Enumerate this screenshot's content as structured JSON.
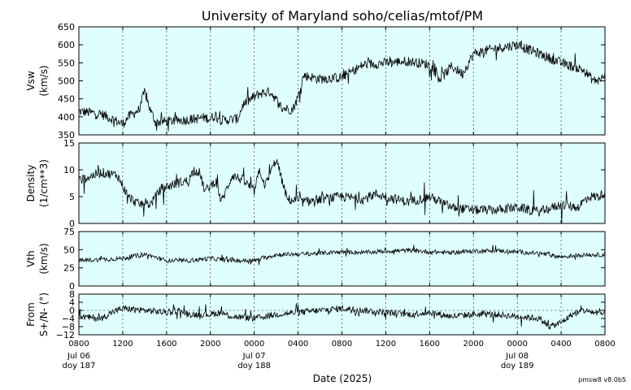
{
  "chart_data": {
    "type": "line",
    "title": "University of Maryland  soho/celias/mtof/PM",
    "xlabel": "Date (2025)",
    "footer": "pmsw8 v8.0b5",
    "x_axis": {
      "range_hours": [
        0,
        48
      ],
      "tick_labels": [
        "0800",
        "1200",
        "1600",
        "2000",
        "0000",
        "0400",
        "0800",
        "1200",
        "1600",
        "2000",
        "0000",
        "0400",
        "0800"
      ],
      "day_labels": [
        {
          "date": "Jul 06",
          "doy": "doy 187",
          "at_tick": 0
        },
        {
          "date": "Jul 07",
          "doy": "doy 188",
          "at_tick": 4
        },
        {
          "date": "Jul 08",
          "doy": "doy 189",
          "at_tick": 10
        }
      ]
    },
    "panels": [
      {
        "name": "Vsw",
        "ylabel_1": "Vsw",
        "ylabel_2": "(km/s)",
        "ylim": [
          350,
          650
        ],
        "yticks": [
          "350",
          "400",
          "450",
          "500",
          "550",
          "600",
          "650"
        ],
        "yticks_num": [
          350,
          400,
          450,
          500,
          550,
          600,
          650
        ],
        "zero_line": false,
        "anchors": [
          [
            0,
            415
          ],
          [
            1,
            412
          ],
          [
            2,
            408
          ],
          [
            3,
            395
          ],
          [
            4,
            380
          ],
          [
            4.5,
            400
          ],
          [
            5.5,
            420
          ],
          [
            6,
            470
          ],
          [
            6.5,
            420
          ],
          [
            7,
            385
          ],
          [
            9,
            390
          ],
          [
            10,
            392
          ],
          [
            11.5,
            398
          ],
          [
            12,
            395
          ],
          [
            12.5,
            405
          ],
          [
            13,
            390
          ],
          [
            14.5,
            395
          ],
          [
            15,
            435
          ],
          [
            16.5,
            465
          ],
          [
            17.5,
            470
          ],
          [
            18.5,
            425
          ],
          [
            19.5,
            420
          ],
          [
            20,
            455
          ],
          [
            20.5,
            515
          ],
          [
            22,
            505
          ],
          [
            24,
            510
          ],
          [
            26,
            545
          ],
          [
            28,
            550
          ],
          [
            30,
            555
          ],
          [
            32,
            545
          ],
          [
            33,
            505
          ],
          [
            34,
            540
          ],
          [
            35,
            520
          ],
          [
            36,
            575
          ],
          [
            38,
            590
          ],
          [
            40,
            600
          ],
          [
            42,
            575
          ],
          [
            44,
            550
          ],
          [
            46,
            530
          ],
          [
            47,
            500
          ],
          [
            48,
            510
          ]
        ],
        "noise": 14,
        "spikes": 30
      },
      {
        "name": "Density",
        "ylabel_1": "Density",
        "ylabel_2": "(1/cm**3)",
        "ylim": [
          0,
          15
        ],
        "yticks": [
          "0",
          "5",
          "10",
          "15"
        ],
        "yticks_num": [
          0,
          5,
          10,
          15
        ],
        "zero_line": false,
        "anchors": [
          [
            0,
            8
          ],
          [
            2,
            9.5
          ],
          [
            3.5,
            9
          ],
          [
            4.5,
            5
          ],
          [
            5.5,
            3.5
          ],
          [
            6,
            4
          ],
          [
            6.5,
            3.5
          ],
          [
            7.5,
            6.5
          ],
          [
            9,
            7.5
          ],
          [
            10,
            8
          ],
          [
            10.5,
            10
          ],
          [
            11,
            9.5
          ],
          [
            11.5,
            6
          ],
          [
            12.5,
            8
          ],
          [
            13,
            4
          ],
          [
            14,
            9
          ],
          [
            15,
            8
          ],
          [
            16,
            6
          ],
          [
            16.5,
            10
          ],
          [
            17,
            7
          ],
          [
            18,
            12
          ],
          [
            19,
            4.5
          ],
          [
            20.5,
            4
          ],
          [
            22,
            4.5
          ],
          [
            24,
            5
          ],
          [
            26,
            4.5
          ],
          [
            27,
            5.5
          ],
          [
            28,
            5
          ],
          [
            30,
            4
          ],
          [
            32,
            5
          ],
          [
            34,
            3
          ],
          [
            36,
            2.5
          ],
          [
            38,
            2.5
          ],
          [
            40,
            3
          ],
          [
            42,
            2.2
          ],
          [
            44,
            3.5
          ],
          [
            45.5,
            3
          ],
          [
            46.5,
            5
          ],
          [
            47.5,
            5
          ],
          [
            48,
            6
          ]
        ],
        "noise": 0.9,
        "spikes": 3
      },
      {
        "name": "Vth",
        "ylabel_1": "Vth",
        "ylabel_2": "(km/s)",
        "ylim": [
          0,
          75
        ],
        "yticks": [
          "0",
          "25",
          "50",
          "75"
        ],
        "yticks_num": [
          0,
          25,
          50,
          75
        ],
        "zero_line": false,
        "anchors": [
          [
            0,
            35
          ],
          [
            4,
            38
          ],
          [
            6,
            44
          ],
          [
            8,
            35
          ],
          [
            10,
            35
          ],
          [
            12,
            38
          ],
          [
            14,
            35
          ],
          [
            16,
            35
          ],
          [
            18,
            43
          ],
          [
            20,
            44
          ],
          [
            22,
            45
          ],
          [
            24,
            47
          ],
          [
            26,
            46
          ],
          [
            28,
            48
          ],
          [
            30,
            49
          ],
          [
            32,
            47
          ],
          [
            34,
            46
          ],
          [
            36,
            48
          ],
          [
            38,
            49
          ],
          [
            40,
            47
          ],
          [
            42,
            45
          ],
          [
            44,
            40
          ],
          [
            46,
            43
          ],
          [
            48,
            43
          ]
        ],
        "noise": 3,
        "spikes": 6
      },
      {
        "name": "From S+/N-",
        "ylabel_1": "From",
        "ylabel_2": "S+/N- (°)",
        "ylim": [
          -12,
          8
        ],
        "yticks": [
          "−12",
          "−8",
          "−4",
          "0",
          "4",
          "8"
        ],
        "yticks_num": [
          -12,
          -8,
          -4,
          0,
          4,
          8
        ],
        "zero_line": true,
        "anchors": [
          [
            0,
            -3
          ],
          [
            2,
            -4
          ],
          [
            3,
            -1
          ],
          [
            4,
            1
          ],
          [
            6,
            0
          ],
          [
            8,
            -1
          ],
          [
            9,
            0
          ],
          [
            10,
            -2
          ],
          [
            12,
            -2
          ],
          [
            13,
            -1
          ],
          [
            14,
            -3
          ],
          [
            16,
            -4
          ],
          [
            18,
            -2
          ],
          [
            20,
            -1
          ],
          [
            22,
            0
          ],
          [
            24,
            1
          ],
          [
            26,
            0
          ],
          [
            28,
            -1
          ],
          [
            30,
            -2
          ],
          [
            32,
            -1
          ],
          [
            34,
            -3
          ],
          [
            36,
            -2
          ],
          [
            38,
            -2
          ],
          [
            40,
            -3
          ],
          [
            42,
            -4
          ],
          [
            43,
            -8
          ],
          [
            44,
            -6
          ],
          [
            45,
            -2
          ],
          [
            46,
            0
          ],
          [
            47,
            -1
          ],
          [
            48,
            -2
          ]
        ],
        "noise": 1.6,
        "spikes": 4
      }
    ]
  }
}
